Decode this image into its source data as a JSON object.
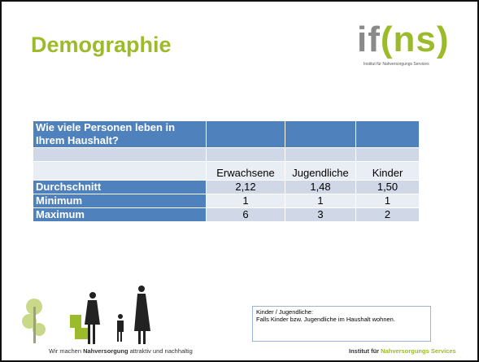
{
  "header": {
    "title": "Demographie",
    "logo": {
      "left": "if",
      "right": "(ns)",
      "caption": "Institut für Nahversorgungs Services"
    }
  },
  "table": {
    "question": "Wie viele Personen leben in Ihrem Haushalt?",
    "columns": [
      "Erwachsene",
      "Jugendliche",
      "Kinder"
    ],
    "rows": [
      [
        "Durchschnitt",
        "2,12",
        "1,48",
        "1,50"
      ],
      [
        "Minimum",
        "1",
        "1",
        "1"
      ],
      [
        "Maximum",
        "6",
        "3",
        "2"
      ]
    ]
  },
  "note": {
    "lines": [
      "Kinder / Jugendliche:",
      "Falls Kinder bzw. Jugendliche im Haushalt wohnen."
    ]
  },
  "footer": {
    "left": [
      "Wir machen ",
      "Nahversorgung",
      " attraktiv und nachhaltig"
    ],
    "right": [
      "Institut für ",
      "Nahversorgungs Services"
    ]
  }
}
